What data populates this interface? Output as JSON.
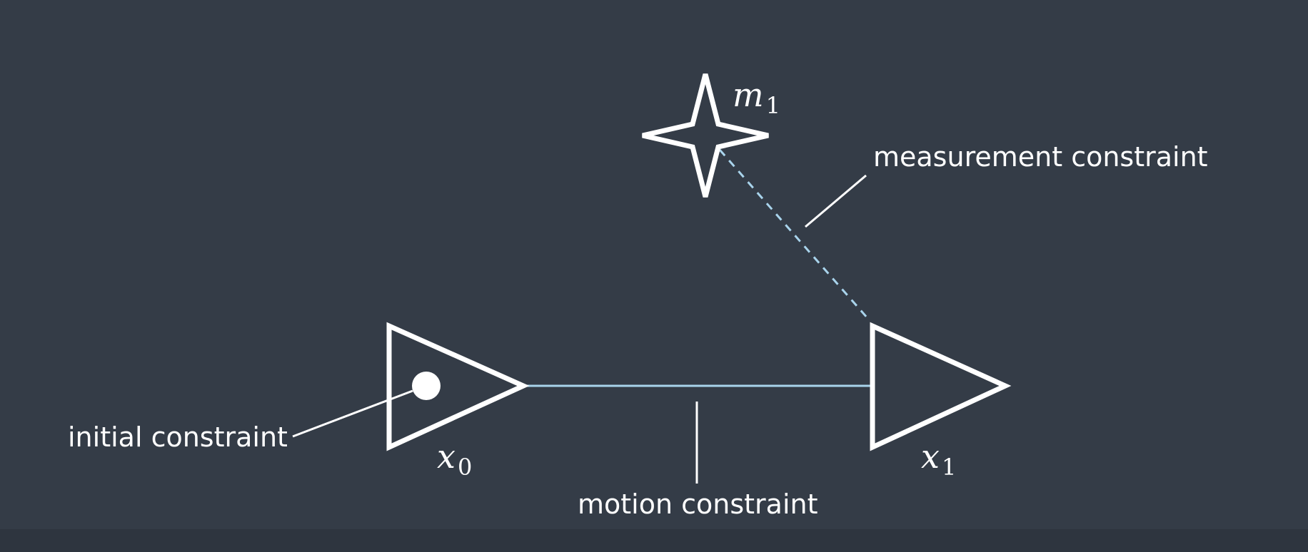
{
  "nodes": {
    "x0": {
      "symbol": "x",
      "subscript": "0"
    },
    "x1": {
      "symbol": "x",
      "subscript": "1"
    },
    "m1": {
      "symbol": "m",
      "subscript": "1"
    }
  },
  "labels": {
    "initial": "initial constraint",
    "motion": "motion constraint",
    "measurement": "measurement constraint"
  },
  "colors": {
    "background": "#343c47",
    "stroke": "#ffffff",
    "edge": "#a9d4ec"
  }
}
